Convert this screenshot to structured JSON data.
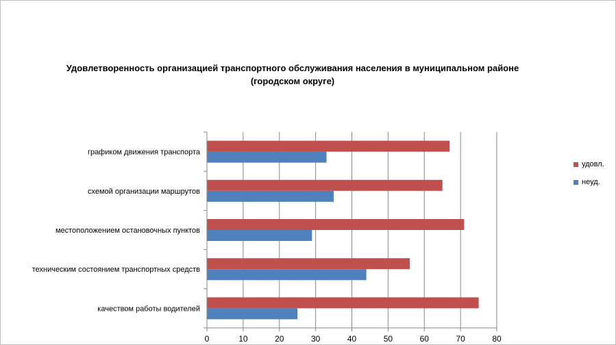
{
  "chart_data": {
    "type": "bar",
    "orientation": "horizontal",
    "title": "Удовлетворенность организацией транспортного обслуживания населения в муниципальном районе (городском округе)",
    "title_lines": [
      "Удовлетворенность организацией транспортного обслуживания населения в муниципальном районе",
      "(городском округе)"
    ],
    "categories": [
      "графиком движения  транспорта",
      "схемой организации маршрутов",
      "местоположением  остановочных пунктов",
      "техническим  состоянием транспортных средств",
      "качеством  работы водителей"
    ],
    "series": [
      {
        "name": "удовл.",
        "color": "#c0504d",
        "values": [
          67,
          65,
          71,
          56,
          75
        ]
      },
      {
        "name": "неуд.",
        "color": "#4f81bd",
        "values": [
          33,
          35,
          29,
          44,
          25
        ]
      }
    ],
    "xlim": [
      0,
      80
    ],
    "xticks": [
      0,
      10,
      20,
      30,
      40,
      50,
      60,
      70,
      80
    ],
    "grid": true,
    "legend_position": "right"
  }
}
